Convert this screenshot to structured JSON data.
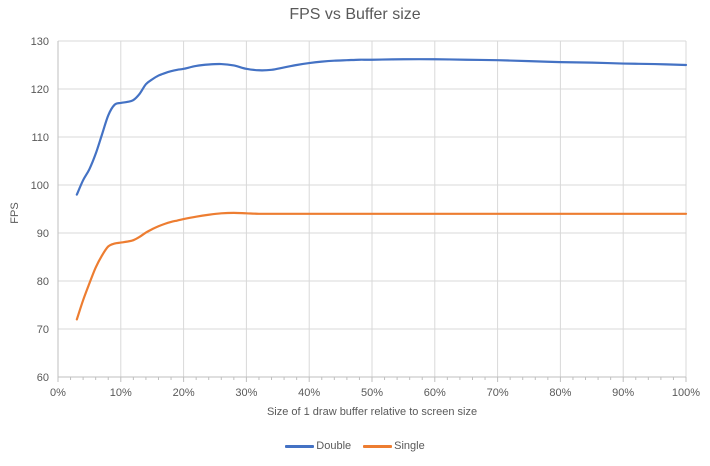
{
  "chart_data": {
    "type": "line",
    "title": "FPS vs Buffer size",
    "xlabel": "Size of 1 draw buffer relative to screen size",
    "ylabel": "FPS",
    "xlim": [
      0,
      100
    ],
    "ylim": [
      60,
      130
    ],
    "x_tick_step": 10,
    "x_minor_tick_step": 2,
    "y_tick_step": 10,
    "x_tick_labels": [
      "0%",
      "10%",
      "20%",
      "30%",
      "40%",
      "50%",
      "60%",
      "70%",
      "80%",
      "90%",
      "100%"
    ],
    "y_tick_labels": [
      "60",
      "70",
      "80",
      "90",
      "100",
      "110",
      "120",
      "130"
    ],
    "grid": true,
    "smooth_lines": true,
    "legend_position": "bottom",
    "colors": {
      "text": "#595959",
      "gridline": "#D9D9D9",
      "axis": "#BFBFBF",
      "background": "#FFFFFF"
    },
    "series": [
      {
        "name": "Double",
        "color": "#4472C4",
        "x": [
          3,
          4,
          5,
          6,
          7,
          8,
          9,
          10,
          11,
          12,
          13,
          14,
          15,
          16,
          17,
          18,
          19,
          20,
          22,
          24,
          26,
          28,
          30,
          32,
          34,
          36,
          38,
          40,
          42,
          44,
          46,
          48,
          50,
          55,
          60,
          65,
          70,
          75,
          80,
          85,
          90,
          95,
          100
        ],
        "y": [
          98,
          101,
          103.3,
          106.5,
          110.5,
          114.5,
          116.7,
          117.1,
          117.3,
          117.7,
          119,
          121,
          122,
          122.8,
          123.3,
          123.7,
          124,
          124.2,
          124.8,
          125.1,
          125.2,
          124.9,
          124.2,
          123.9,
          124,
          124.5,
          125,
          125.4,
          125.7,
          125.9,
          126,
          126.1,
          126.1,
          126.2,
          126.2,
          126.1,
          126,
          125.8,
          125.6,
          125.5,
          125.3,
          125.2,
          125
        ]
      },
      {
        "name": "Single",
        "color": "#ED7D31",
        "x": [
          3,
          4,
          5,
          6,
          7,
          8,
          9,
          10,
          11,
          12,
          13,
          14,
          15,
          16,
          17,
          18,
          19,
          20,
          22,
          24,
          26,
          28,
          30,
          32,
          34,
          36,
          38,
          40,
          42,
          44,
          46,
          48,
          50,
          55,
          60,
          65,
          70,
          75,
          80,
          85,
          90,
          95,
          100
        ],
        "y": [
          72,
          76,
          79.5,
          82.8,
          85.3,
          87.2,
          87.8,
          88,
          88.2,
          88.5,
          89.2,
          90.1,
          90.8,
          91.4,
          91.9,
          92.3,
          92.6,
          92.9,
          93.4,
          93.8,
          94.1,
          94.2,
          94.1,
          94,
          94,
          94,
          94,
          94,
          94,
          94,
          94,
          94,
          94,
          94,
          94,
          94,
          94,
          94,
          94,
          94,
          94,
          94,
          94
        ]
      }
    ]
  }
}
